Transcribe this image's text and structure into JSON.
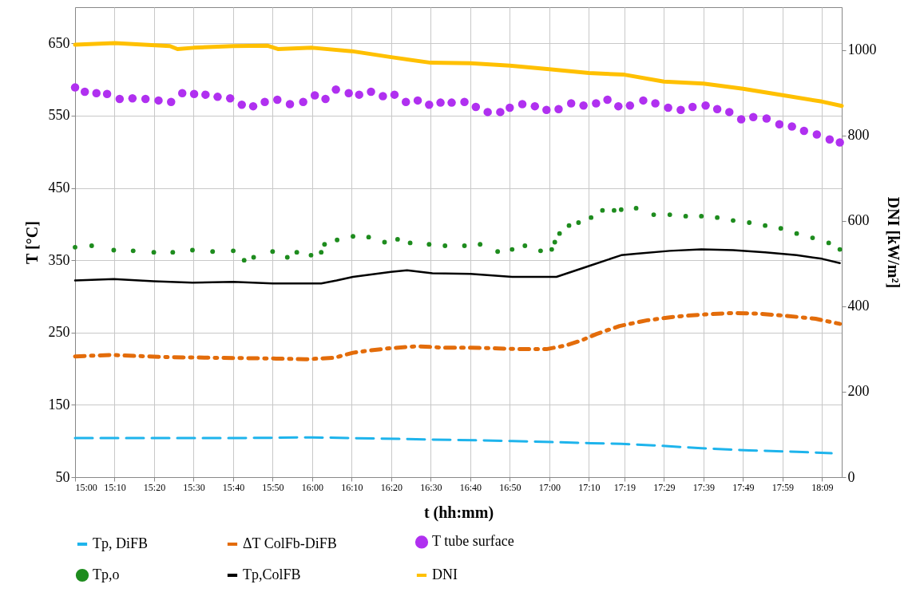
{
  "chart_data": {
    "type": "line",
    "xlabel": "t (hh:mm)",
    "ylabel": "T [°C]",
    "y2label": "DNI [kW/m²]",
    "xlim": [
      15,
      18.233
    ],
    "xticks": [
      {
        "value": 15,
        "label": "15:00"
      },
      {
        "value": 15.1667,
        "label": "15:10"
      },
      {
        "value": 15.3333,
        "label": "15:20"
      },
      {
        "value": 15.5,
        "label": "15:30"
      },
      {
        "value": 15.6667,
        "label": "15:40"
      },
      {
        "value": 15.8333,
        "label": "15:50"
      },
      {
        "value": 16,
        "label": "16:00"
      },
      {
        "value": 16.1667,
        "label": "16:10"
      },
      {
        "value": 16.3333,
        "label": "16:20"
      },
      {
        "value": 16.5,
        "label": "16:30"
      },
      {
        "value": 16.6667,
        "label": "16:40"
      },
      {
        "value": 16.8333,
        "label": "16:50"
      },
      {
        "value": 17,
        "label": "17:00"
      },
      {
        "value": 17.1667,
        "label": "17:10"
      },
      {
        "value": 17.3167,
        "label": "17:19"
      },
      {
        "value": 17.4833,
        "label": "17:29"
      },
      {
        "value": 17.65,
        "label": "17:39"
      },
      {
        "value": 17.8167,
        "label": "17:49"
      },
      {
        "value": 17.9833,
        "label": "17:59"
      },
      {
        "value": 18.15,
        "label": "18:09"
      }
    ],
    "ylim": [
      50,
      700
    ],
    "yticks": [
      50,
      150,
      250,
      350,
      450,
      550,
      650
    ],
    "y2lim": [
      0,
      1100
    ],
    "y2ticks": [
      0,
      200,
      400,
      600,
      800,
      1000
    ],
    "grid": true,
    "legend": "bottom",
    "series": [
      {
        "name": "Tp, DiFB",
        "line_style": "dashed",
        "color": "#1eb4ec",
        "x": [
          15,
          15.667,
          16,
          16.172,
          16.507,
          16.843,
          17.176,
          17.303,
          17.44,
          17.641,
          17.843,
          18.043,
          18.19
        ],
        "values": [
          104,
          104,
          105,
          104,
          102,
          100,
          97,
          96,
          94,
          90,
          87,
          85,
          83
        ]
      },
      {
        "name": "ΔT ColFb-DiFB",
        "line_style": "dashdot",
        "color": "#e36c0a",
        "x": [
          15,
          15.15,
          15.38,
          15.617,
          15.848,
          15.97,
          16.092,
          16.172,
          16.238,
          16.317,
          16.438,
          16.56,
          16.667,
          16.787,
          16.88,
          16.988,
          17.068,
          17.135,
          17.199,
          17.296,
          17.413,
          17.508,
          17.566,
          17.655,
          17.775,
          17.888,
          18.003,
          18.123,
          18.225
        ],
        "values": [
          217,
          219,
          216,
          215,
          214,
          213,
          215,
          222,
          225,
          228,
          231,
          229,
          229,
          228,
          227,
          227,
          232,
          239,
          248,
          259,
          267,
          271,
          273,
          275,
          277,
          276,
          273,
          269,
          262
        ]
      },
      {
        "name": "T  tube surface",
        "type": "scatter",
        "marker": "circle",
        "color": "#b030f0",
        "x": [
          15,
          15.041,
          15.09,
          15.135,
          15.188,
          15.242,
          15.297,
          15.352,
          15.405,
          15.452,
          15.502,
          15.55,
          15.601,
          15.654,
          15.703,
          15.751,
          15.8,
          15.853,
          15.906,
          15.962,
          16.011,
          16.056,
          16.1,
          16.154,
          16.198,
          16.248,
          16.298,
          16.347,
          16.395,
          16.445,
          16.493,
          16.541,
          16.588,
          16.642,
          16.69,
          16.74,
          16.793,
          16.833,
          16.886,
          16.939,
          16.988,
          17.039,
          17.092,
          17.144,
          17.197,
          17.245,
          17.291,
          17.34,
          17.396,
          17.447,
          17.501,
          17.554,
          17.604,
          17.659,
          17.708,
          17.759,
          17.809,
          17.86,
          17.916,
          17.97,
          18.023,
          18.074,
          18.128,
          18.182,
          18.225
        ],
        "values": [
          589,
          583,
          581,
          580,
          573,
          574,
          573,
          571,
          569,
          581,
          580,
          579,
          576,
          574,
          565,
          563,
          569,
          572,
          566,
          569,
          578,
          573,
          586,
          581,
          579,
          583,
          577,
          579,
          569,
          571,
          565,
          568,
          568,
          569,
          562,
          555,
          555,
          561,
          566,
          563,
          558,
          559,
          567,
          564,
          567,
          572,
          563,
          564,
          571,
          567,
          561,
          558,
          562,
          564,
          559,
          555,
          545,
          548,
          546,
          538,
          535,
          529,
          524,
          517,
          513
        ]
      },
      {
        "name": "Tp,o",
        "type": "scatter",
        "marker": "circle",
        "color": "#1e8c1e",
        "x": [
          15,
          15.07,
          15.163,
          15.245,
          15.332,
          15.412,
          15.495,
          15.58,
          15.667,
          15.713,
          15.753,
          15.833,
          15.895,
          15.935,
          15.995,
          16.038,
          16.052,
          16.105,
          16.172,
          16.238,
          16.305,
          16.36,
          16.413,
          16.493,
          16.56,
          16.642,
          16.708,
          16.782,
          16.843,
          16.897,
          16.963,
          17.01,
          17.023,
          17.043,
          17.083,
          17.123,
          17.176,
          17.224,
          17.273,
          17.303,
          17.366,
          17.44,
          17.508,
          17.575,
          17.641,
          17.708,
          17.775,
          17.843,
          17.91,
          17.976,
          18.043,
          18.11,
          18.178,
          18.225
        ],
        "values": [
          368,
          370,
          364,
          363,
          361,
          361,
          364,
          362,
          363,
          350,
          354,
          362,
          354,
          361,
          357,
          361,
          372,
          378,
          383,
          382,
          375,
          379,
          374,
          372,
          370,
          370,
          372,
          362,
          365,
          370,
          363,
          365,
          375,
          387,
          398,
          402,
          409,
          419,
          419,
          420,
          422,
          413,
          413,
          411,
          411,
          409,
          405,
          402,
          398,
          394,
          387,
          381,
          374,
          365
        ]
      },
      {
        "name": "Tp,ColFB",
        "line_style": "solid",
        "color": "#000000",
        "x": [
          15,
          15.163,
          15.332,
          15.495,
          15.667,
          15.833,
          16,
          16.038,
          16.103,
          16.172,
          16.332,
          16.4,
          16.507,
          16.667,
          16.843,
          17.03,
          17.176,
          17.303,
          17.366,
          17.508,
          17.641,
          17.775,
          17.91,
          18.043,
          18.15,
          18.225
        ],
        "values": [
          322,
          324,
          321,
          319,
          320,
          318,
          318,
          318,
          322,
          327,
          334,
          336,
          332,
          331,
          327,
          327,
          343,
          357,
          359,
          363,
          365,
          364,
          361,
          357,
          352,
          346
        ]
      },
      {
        "name": "DNI",
        "line_style": "solid",
        "axis": "y2",
        "color": "#ffc000",
        "x": [
          15,
          15.167,
          15.4,
          15.432,
          15.5,
          15.667,
          15.81,
          15.855,
          16,
          16.167,
          16.333,
          16.5,
          16.667,
          16.833,
          17,
          17.167,
          17.317,
          17.483,
          17.65,
          17.817,
          17.983,
          18.15,
          18.233
        ],
        "values": [
          1012,
          1016,
          1009,
          1002,
          1005,
          1009,
          1010,
          1002,
          1005,
          997,
          983,
          970,
          969,
          963,
          955,
          946,
          942,
          926,
          921,
          909,
          894,
          879,
          869
        ]
      }
    ]
  }
}
